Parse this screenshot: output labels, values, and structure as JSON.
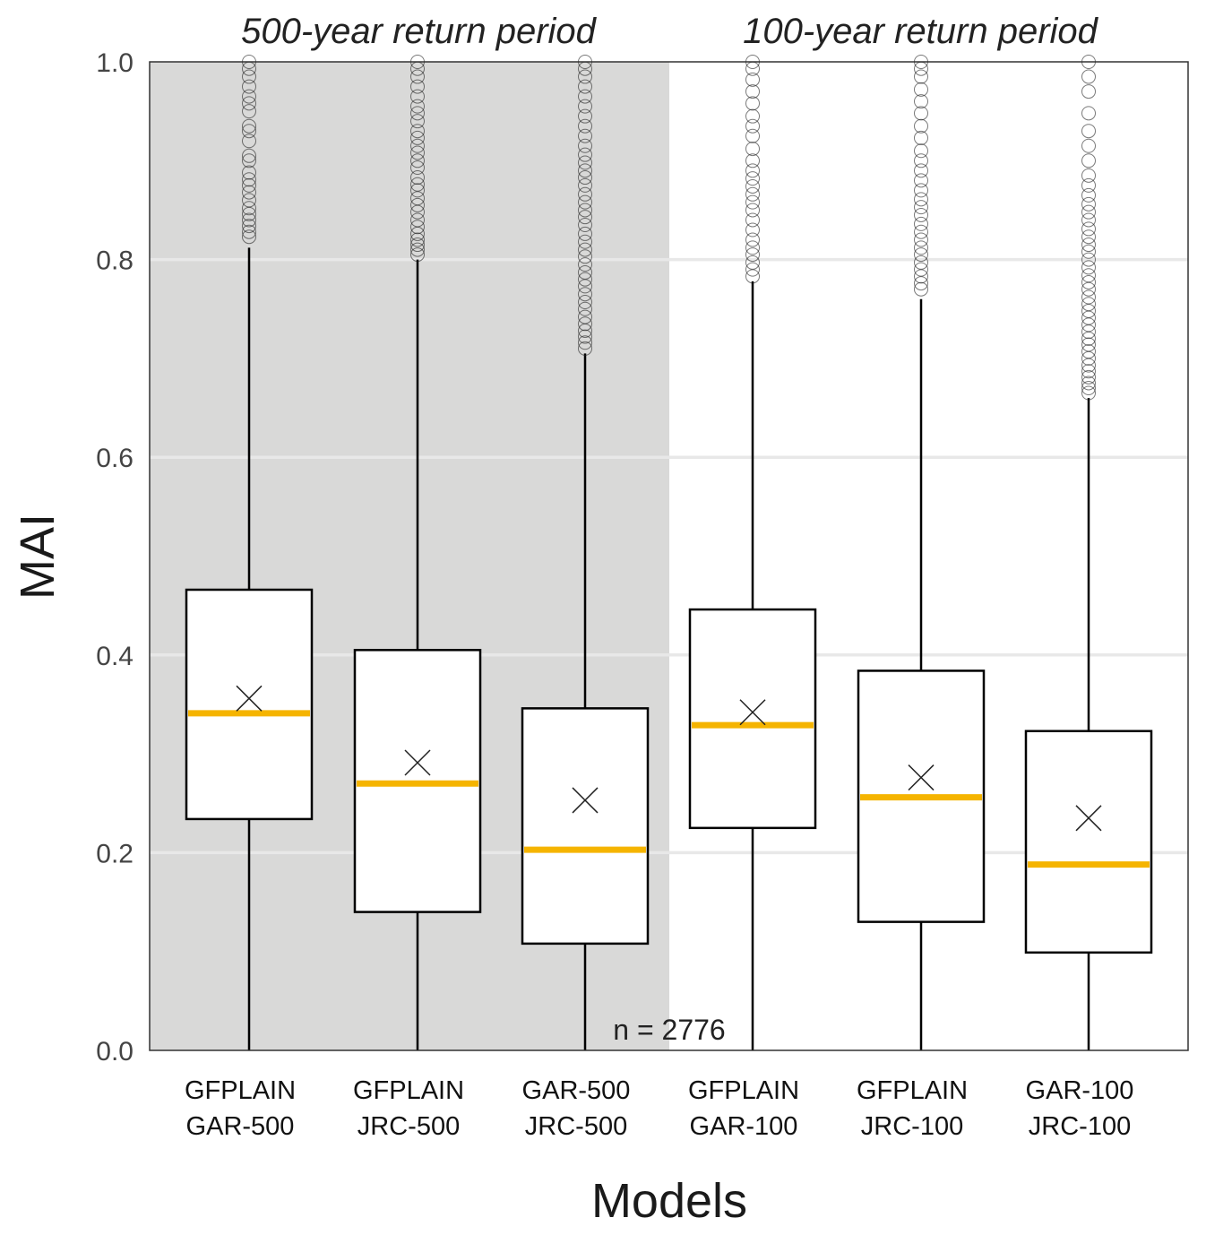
{
  "chart_data": {
    "type": "box",
    "title": "",
    "xlabel": "Models",
    "ylabel": "MAI",
    "ylim": [
      0,
      1
    ],
    "yticks": [
      "0.0",
      "0.2",
      "0.4",
      "0.6",
      "0.8",
      "1.0"
    ],
    "grid": "horizontal",
    "panels": [
      {
        "title": "500-year return period",
        "shaded": true,
        "categories": [
          0,
          1,
          2
        ]
      },
      {
        "title": "100-year return period",
        "shaded": false,
        "categories": [
          3,
          4,
          5
        ]
      }
    ],
    "annotation": "n = 2776",
    "colors": {
      "median": "#f5b400",
      "panel_shade": "#d9d9d8",
      "grid": "#e8e8e8"
    },
    "categories": [
      {
        "line1": "GFPLAIN",
        "line2": "GAR-500",
        "q1": 0.234,
        "median": 0.341,
        "q3": 0.466,
        "mean": 0.356,
        "whisker_low": 0.0,
        "whisker_high": 0.812,
        "outliers": [
          0.823,
          0.828,
          0.834,
          0.84,
          0.846,
          0.852,
          0.86,
          0.868,
          0.875,
          0.881,
          0.888,
          0.9,
          0.905,
          0.92,
          0.93,
          0.935,
          0.95,
          0.958,
          0.965,
          0.975,
          0.985,
          0.993,
          1.0
        ]
      },
      {
        "line1": "GFPLAIN",
        "line2": "JRC-500",
        "q1": 0.14,
        "median": 0.27,
        "q3": 0.405,
        "mean": 0.291,
        "whisker_low": 0.0,
        "whisker_high": 0.8,
        "outliers": [
          0.805,
          0.81,
          0.815,
          0.82,
          0.826,
          0.833,
          0.84,
          0.848,
          0.855,
          0.862,
          0.87,
          0.876,
          0.883,
          0.893,
          0.9,
          0.908,
          0.915,
          0.923,
          0.93,
          0.94,
          0.948,
          0.955,
          0.965,
          0.975,
          0.985,
          0.993,
          1.0
        ]
      },
      {
        "line1": "GAR-500",
        "line2": "JRC-500",
        "q1": 0.108,
        "median": 0.203,
        "q3": 0.346,
        "mean": 0.253,
        "whisker_low": 0.0,
        "whisker_high": 0.705,
        "outliers": [
          0.71,
          0.716,
          0.722,
          0.728,
          0.735,
          0.742,
          0.75,
          0.757,
          0.765,
          0.773,
          0.78,
          0.787,
          0.795,
          0.803,
          0.81,
          0.818,
          0.826,
          0.835,
          0.843,
          0.85,
          0.858,
          0.866,
          0.875,
          0.883,
          0.89,
          0.898,
          0.906,
          0.915,
          0.925,
          0.935,
          0.945,
          0.955,
          0.965,
          0.975,
          0.985,
          0.993,
          1.0
        ]
      },
      {
        "line1": "GFPLAIN",
        "line2": "GAR-100",
        "q1": 0.225,
        "median": 0.329,
        "q3": 0.446,
        "mean": 0.342,
        "whisker_low": 0.0,
        "whisker_high": 0.778,
        "outliers": [
          0.783,
          0.79,
          0.797,
          0.805,
          0.812,
          0.82,
          0.83,
          0.84,
          0.85,
          0.858,
          0.866,
          0.874,
          0.882,
          0.89,
          0.9,
          0.912,
          0.925,
          0.935,
          0.945,
          0.958,
          0.97,
          0.982,
          0.993,
          1.0
        ]
      },
      {
        "line1": "GFPLAIN",
        "line2": "JRC-100",
        "q1": 0.13,
        "median": 0.256,
        "q3": 0.384,
        "mean": 0.276,
        "whisker_low": 0.0,
        "whisker_high": 0.76,
        "outliers": [
          0.77,
          0.776,
          0.783,
          0.79,
          0.797,
          0.805,
          0.812,
          0.82,
          0.828,
          0.836,
          0.845,
          0.853,
          0.861,
          0.87,
          0.88,
          0.89,
          0.9,
          0.91,
          0.923,
          0.935,
          0.948,
          0.96,
          0.972,
          0.985,
          0.993,
          1.0
        ]
      },
      {
        "line1": "GAR-100",
        "line2": "JRC-100",
        "q1": 0.099,
        "median": 0.188,
        "q3": 0.323,
        "mean": 0.235,
        "whisker_low": 0.0,
        "whisker_high": 0.66,
        "outliers": [
          0.665,
          0.67,
          0.675,
          0.681,
          0.687,
          0.693,
          0.7,
          0.707,
          0.714,
          0.72,
          0.727,
          0.734,
          0.741,
          0.748,
          0.755,
          0.762,
          0.77,
          0.777,
          0.784,
          0.792,
          0.8,
          0.808,
          0.815,
          0.823,
          0.831,
          0.84,
          0.848,
          0.856,
          0.865,
          0.875,
          0.885,
          0.9,
          0.915,
          0.93,
          0.948,
          0.97,
          0.985,
          1.0
        ]
      }
    ]
  }
}
